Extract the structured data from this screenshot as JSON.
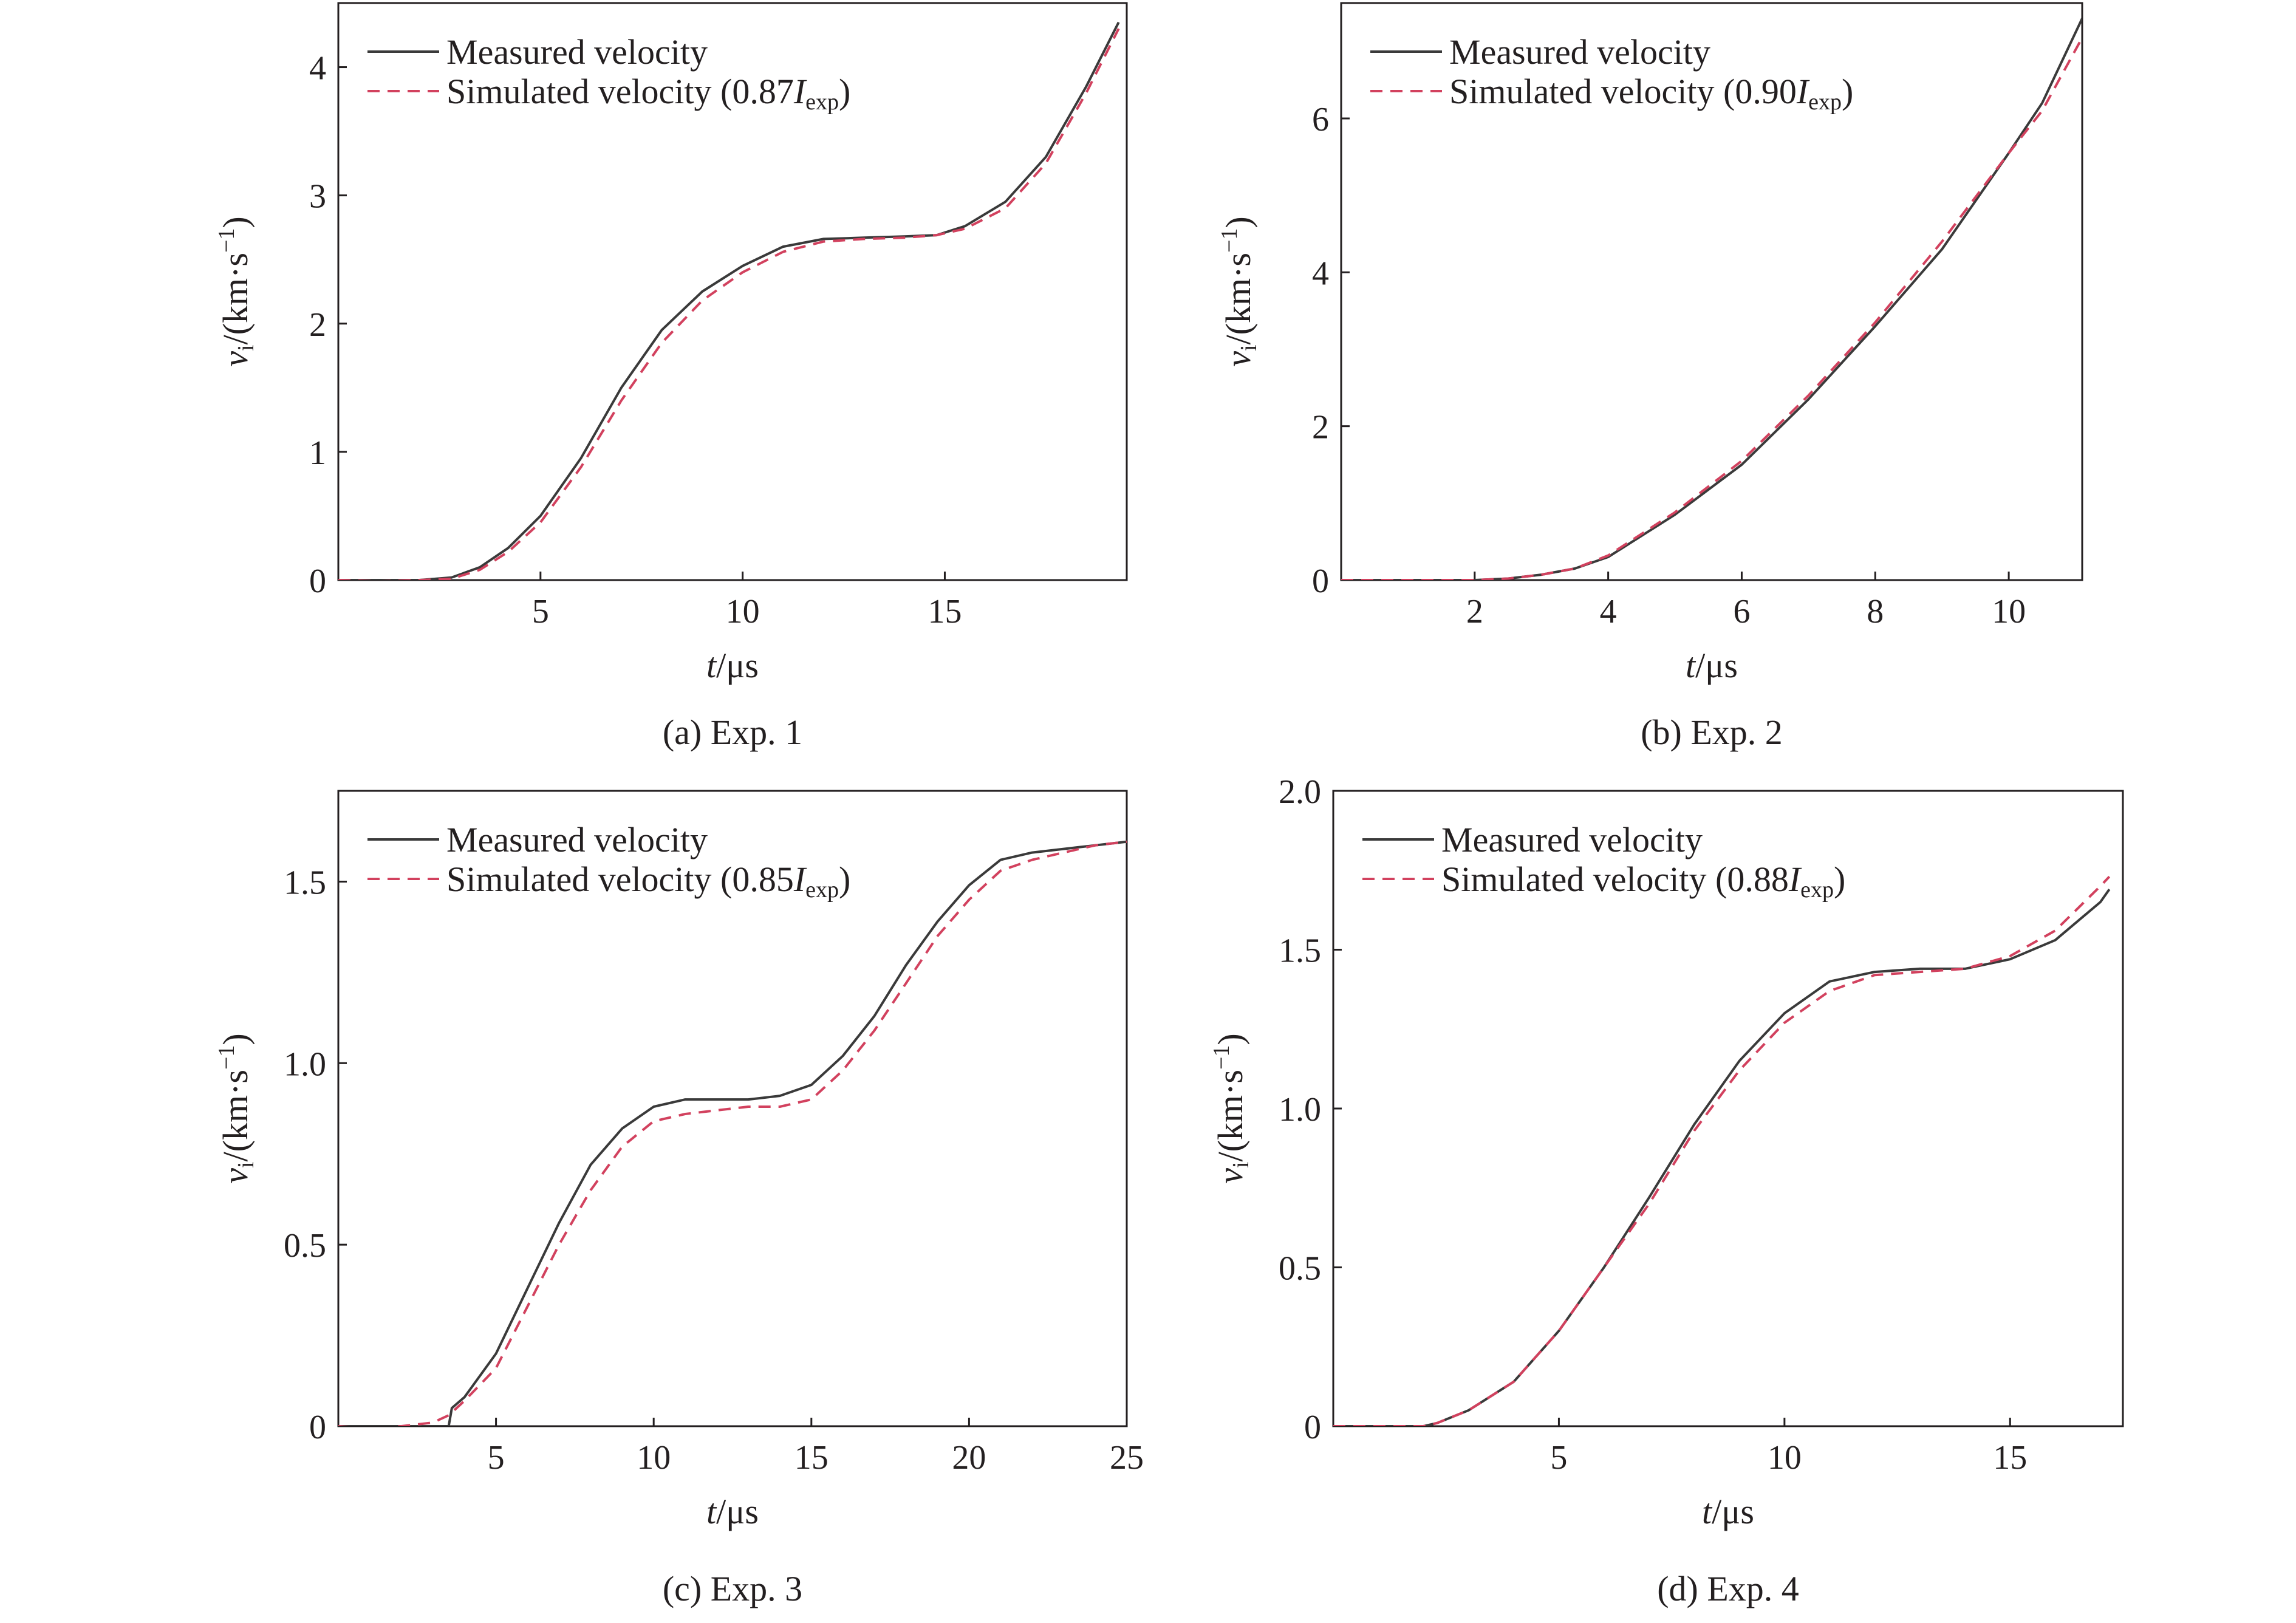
{
  "colors": {
    "measured": "#3a3a3a",
    "simulated": "#d2415e",
    "axis": "#231f20"
  },
  "chart_data": [
    {
      "type": "line",
      "caption": "(a) Exp. 1",
      "xlabel": "t/μs",
      "ylabel": "vi/(km·s−1)",
      "xlim": [
        0,
        19.5
      ],
      "ylim": [
        0,
        4.5
      ],
      "xticks": [
        "5",
        "10",
        "15"
      ],
      "xtick_values": [
        5,
        10,
        15
      ],
      "yticks": [
        "0",
        "1",
        "2",
        "3",
        "4"
      ],
      "ytick_values": [
        0,
        1,
        2,
        3,
        4
      ],
      "legend_position": "top-left",
      "series": [
        {
          "name": "Measured velocity",
          "style": "solid",
          "x": [
            0,
            1,
            2,
            2.8,
            3.5,
            4.2,
            5,
            6,
            7,
            8,
            9,
            10,
            11,
            12,
            13,
            14,
            14.8,
            15.5,
            16.5,
            17.5,
            18.5,
            19.3
          ],
          "y": [
            0,
            0,
            0,
            0.02,
            0.1,
            0.25,
            0.5,
            0.95,
            1.5,
            1.95,
            2.25,
            2.45,
            2.6,
            2.66,
            2.67,
            2.68,
            2.69,
            2.76,
            2.95,
            3.3,
            3.85,
            4.35
          ]
        },
        {
          "name": "Simulated velocity (0.87Iexp)",
          "style": "dashed",
          "x": [
            0,
            1,
            2,
            2.8,
            3.5,
            4.2,
            5,
            6,
            7,
            8,
            9,
            10,
            11,
            12,
            13,
            14,
            14.8,
            15.5,
            16.5,
            17.5,
            18.5,
            19.3
          ],
          "y": [
            0,
            -0.01,
            0,
            0.01,
            0.08,
            0.22,
            0.45,
            0.88,
            1.4,
            1.85,
            2.18,
            2.4,
            2.56,
            2.64,
            2.66,
            2.67,
            2.69,
            2.74,
            2.9,
            3.25,
            3.8,
            4.3
          ]
        }
      ]
    },
    {
      "type": "line",
      "caption": "(b) Exp. 2",
      "xlabel": "t/μs",
      "ylabel": "vi/(km·s−1)",
      "xlim": [
        0,
        11.1
      ],
      "ylim": [
        0,
        7.5
      ],
      "xticks": [
        "2",
        "4",
        "6",
        "8",
        "10"
      ],
      "xtick_values": [
        2,
        4,
        6,
        8,
        10
      ],
      "yticks": [
        "0",
        "2",
        "4",
        "6"
      ],
      "ytick_values": [
        0,
        2,
        4,
        6
      ],
      "legend_position": "top-left",
      "series": [
        {
          "name": "Measured velocity",
          "style": "solid",
          "x": [
            0,
            1,
            2,
            2.5,
            3,
            3.5,
            4,
            5,
            6,
            7,
            8,
            9,
            10,
            10.5,
            11.1
          ],
          "y": [
            0,
            0,
            0,
            0.02,
            0.07,
            0.15,
            0.3,
            0.85,
            1.5,
            2.35,
            3.3,
            4.3,
            5.55,
            6.2,
            7.3
          ]
        },
        {
          "name": "Simulated velocity (0.90Iexp)",
          "style": "dashed",
          "x": [
            0,
            1,
            2,
            2.5,
            3,
            3.5,
            4,
            5,
            6,
            7,
            8,
            9,
            10,
            10.5,
            11.1
          ],
          "y": [
            0,
            0,
            0,
            0.02,
            0.07,
            0.15,
            0.32,
            0.88,
            1.55,
            2.4,
            3.35,
            4.4,
            5.55,
            6.1,
            7.05
          ]
        }
      ]
    },
    {
      "type": "line",
      "caption": "(c) Exp. 3",
      "xlabel": "t/μs",
      "ylabel": "vi/(km·s−1)",
      "xlim": [
        0,
        25
      ],
      "ylim": [
        0,
        1.75
      ],
      "xticks": [
        "5",
        "10",
        "15",
        "20",
        "25"
      ],
      "xtick_values": [
        5,
        10,
        15,
        20,
        25
      ],
      "yticks": [
        "0",
        "0.5",
        "1.0",
        "1.5"
      ],
      "ytick_values": [
        0,
        0.5,
        1.0,
        1.5
      ],
      "legend_position": "top-left",
      "series": [
        {
          "name": "Measured velocity",
          "style": "solid",
          "x": [
            0,
            1,
            2,
            3,
            3.5,
            3.6,
            4,
            5,
            6,
            7,
            8,
            9,
            10,
            11,
            12,
            13,
            14,
            15,
            16,
            17,
            18,
            19,
            20,
            21,
            22,
            23,
            24,
            25
          ],
          "y": [
            0,
            0,
            0,
            0,
            0,
            0.05,
            0.08,
            0.2,
            0.38,
            0.56,
            0.72,
            0.82,
            0.88,
            0.9,
            0.9,
            0.9,
            0.91,
            0.94,
            1.02,
            1.13,
            1.27,
            1.39,
            1.49,
            1.56,
            1.58,
            1.59,
            1.6,
            1.61
          ]
        },
        {
          "name": "Simulated velocity (0.85Iexp)",
          "style": "dashed",
          "x": [
            0,
            1,
            2,
            3,
            3.5,
            4,
            5,
            6,
            7,
            8,
            9,
            10,
            11,
            12,
            13,
            14,
            15,
            16,
            17,
            18,
            19,
            20,
            21,
            22,
            23,
            24,
            25
          ],
          "y": [
            0,
            -0.01,
            0,
            0.01,
            0.03,
            0.07,
            0.16,
            0.33,
            0.5,
            0.65,
            0.77,
            0.84,
            0.86,
            0.87,
            0.88,
            0.88,
            0.9,
            0.98,
            1.09,
            1.22,
            1.35,
            1.45,
            1.53,
            1.56,
            1.58,
            1.6,
            1.61
          ]
        }
      ]
    },
    {
      "type": "line",
      "caption": "(d) Exp. 4",
      "xlabel": "t/μs",
      "ylabel": "vi/(km·s−1)",
      "xlim": [
        0,
        17.5
      ],
      "ylim": [
        0,
        2.0
      ],
      "xticks": [
        "5",
        "10",
        "15"
      ],
      "xtick_values": [
        5,
        10,
        15
      ],
      "yticks": [
        "0",
        "0.5",
        "1.0",
        "1.5",
        "2.0"
      ],
      "ytick_values": [
        0,
        0.5,
        1.0,
        1.5,
        2.0
      ],
      "legend_position": "top-left",
      "series": [
        {
          "name": "Measured velocity",
          "style": "solid",
          "x": [
            0,
            1,
            2,
            2.3,
            3,
            4,
            5,
            6,
            7,
            8,
            9,
            10,
            11,
            12,
            13,
            14,
            15,
            16,
            17,
            17.2
          ],
          "y": [
            0,
            0,
            0,
            0.01,
            0.05,
            0.14,
            0.3,
            0.5,
            0.72,
            0.95,
            1.15,
            1.3,
            1.4,
            1.43,
            1.44,
            1.44,
            1.47,
            1.53,
            1.65,
            1.69
          ]
        },
        {
          "name": "Simulated velocity (0.88Iexp)",
          "style": "dashed",
          "x": [
            0,
            1,
            2,
            2.3,
            3,
            4,
            5,
            6,
            7,
            8,
            9,
            10,
            11,
            12,
            13,
            14,
            15,
            16,
            17,
            17.2
          ],
          "y": [
            0,
            0,
            0,
            0.01,
            0.05,
            0.14,
            0.3,
            0.5,
            0.7,
            0.93,
            1.12,
            1.27,
            1.37,
            1.42,
            1.43,
            1.44,
            1.48,
            1.56,
            1.7,
            1.73
          ]
        }
      ]
    }
  ],
  "legend_labels": [
    {
      "measured": "Measured velocity",
      "simulated_prefix": "Simulated velocity (0.87",
      "simulated_italic": "I",
      "simulated_sub": "exp",
      "simulated_suffix": ")"
    },
    {
      "measured": "Measured velocity",
      "simulated_prefix": "Simulated velocity (0.90",
      "simulated_italic": "I",
      "simulated_sub": "exp",
      "simulated_suffix": ")"
    },
    {
      "measured": "Measured velocity",
      "simulated_prefix": "Simulated velocity (0.85",
      "simulated_italic": "I",
      "simulated_sub": "exp",
      "simulated_suffix": ")"
    },
    {
      "measured": "Measured velocity",
      "simulated_prefix": "Simulated velocity (0.88",
      "simulated_italic": "I",
      "simulated_sub": "exp",
      "simulated_suffix": ")"
    }
  ],
  "axis_label_parts": {
    "x_italic": "t",
    "x_rest": "/μs",
    "y_italic": "v",
    "y_sub": "i",
    "y_rest": "/(km·s",
    "y_sup": "−1",
    "y_close": ")"
  }
}
